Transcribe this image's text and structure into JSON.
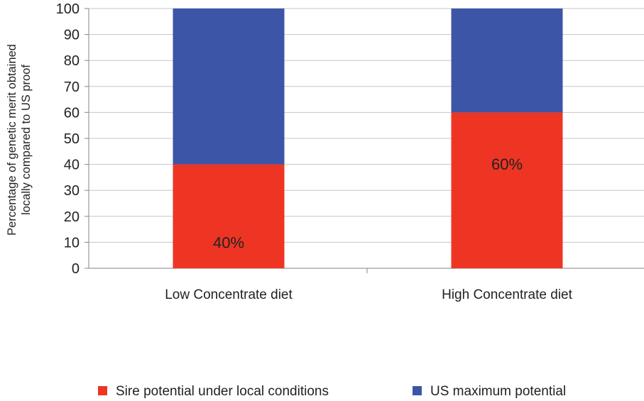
{
  "chart_data": {
    "type": "bar",
    "stacked": true,
    "categories": [
      "Low Concentrate diet",
      "High Concentrate diet"
    ],
    "series": [
      {
        "name": "Sire potential under local conditions",
        "values": [
          40,
          60
        ],
        "color": "#ee3524",
        "labels": [
          "40%",
          "60%"
        ]
      },
      {
        "name": "US maximum potential",
        "values": [
          60,
          40
        ],
        "color": "#3d55a7"
      }
    ],
    "ylabel_lines": [
      "Percentage of genetic merit obtained",
      "locally compared to US proof"
    ],
    "xlabel": "",
    "ylim": [
      0,
      100
    ],
    "yticks": [
      0,
      10,
      20,
      30,
      40,
      50,
      60,
      70,
      80,
      90,
      100
    ],
    "grid": true,
    "legend_position": "bottom"
  }
}
